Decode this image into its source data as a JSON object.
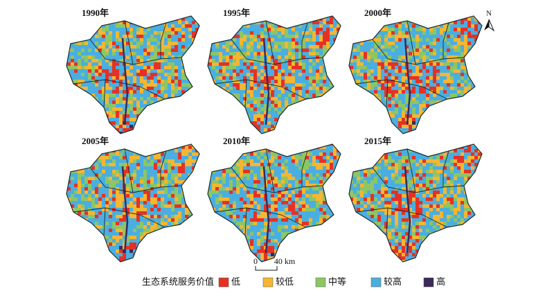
{
  "panels": [
    {
      "label": "1990年"
    },
    {
      "label": "1995年"
    },
    {
      "label": "2000年"
    },
    {
      "label": "2005年"
    },
    {
      "label": "2010年"
    },
    {
      "label": "2015年"
    }
  ],
  "north": "N",
  "scale_bar": {
    "start": "0",
    "end": "40 km"
  },
  "legend": {
    "title": "生态系统服务价值",
    "items": [
      {
        "label": "低",
        "color": "#e53125"
      },
      {
        "label": "较低",
        "color": "#f5b631"
      },
      {
        "label": "中等",
        "color": "#8cc665"
      },
      {
        "label": "较高",
        "color": "#4aaee0"
      },
      {
        "label": "高",
        "color": "#3b2a5a"
      }
    ]
  }
}
